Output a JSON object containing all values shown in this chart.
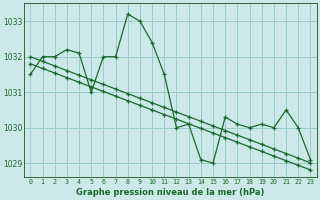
{
  "title": "Graphe pression niveau de la mer (hPa)",
  "bg_color": "#cce8e8",
  "grid_color": "#99cccc",
  "line_color": "#1a6b2a",
  "marker": "+",
  "x_ticks": [
    0,
    1,
    2,
    3,
    4,
    5,
    6,
    7,
    8,
    9,
    10,
    11,
    12,
    13,
    14,
    15,
    16,
    17,
    18,
    19,
    20,
    21,
    22,
    23
  ],
  "y_ticks": [
    1029,
    1030,
    1031,
    1032,
    1033
  ],
  "ylim": [
    1028.6,
    1033.5
  ],
  "xlim": [
    -0.5,
    23.5
  ],
  "series": [
    [
      1031.5,
      1032.0,
      1032.0,
      1032.2,
      1032.1,
      1031.0,
      1032.0,
      1032.0,
      1033.2,
      1033.0,
      1032.4,
      1031.5,
      1030.0,
      1030.1,
      1029.1,
      1029.0,
      1030.3,
      1030.1,
      1030.0,
      1030.1,
      1030.0,
      1030.5,
      1030.0,
      1029.1
    ],
    [
      1032.0,
      1031.87,
      1031.74,
      1031.61,
      1031.48,
      1031.35,
      1031.22,
      1031.09,
      1030.96,
      1030.83,
      1030.7,
      1030.57,
      1030.44,
      1030.31,
      1030.18,
      1030.05,
      1029.92,
      1029.79,
      1029.66,
      1029.53,
      1029.4,
      1029.27,
      1029.14,
      1029.01
    ],
    [
      1031.8,
      1031.67,
      1031.54,
      1031.41,
      1031.28,
      1031.15,
      1031.02,
      1030.89,
      1030.76,
      1030.63,
      1030.5,
      1030.37,
      1030.24,
      1030.11,
      1029.98,
      1029.85,
      1029.72,
      1029.59,
      1029.46,
      1029.33,
      1029.2,
      1029.07,
      1028.94,
      1028.81
    ]
  ],
  "ylabel_fontsize": 5.5,
  "xlabel_fontsize": 6,
  "tick_fontsize": 4.8,
  "linewidth": 0.9,
  "markersize": 3.5
}
